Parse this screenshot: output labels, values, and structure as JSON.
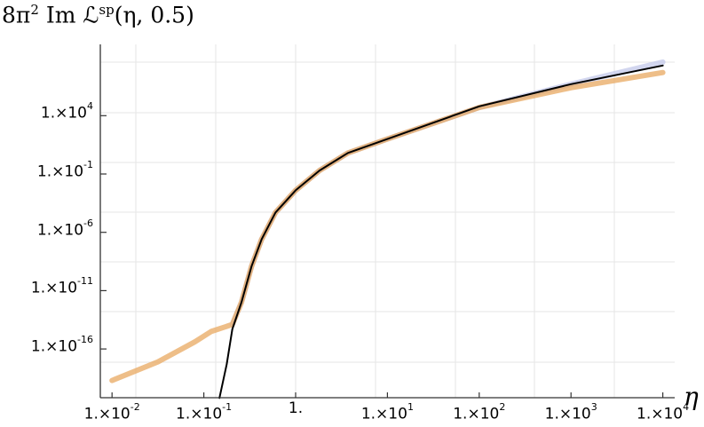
{
  "chart_data": {
    "type": "line",
    "title": "8π² Im ℒ^sp(η, 0.5)",
    "title_parts": {
      "prefix": "8π",
      "exp": "2",
      "middle": " Im ℒ",
      "sup": "sp",
      "suffix": "(η, 0.5)"
    },
    "xlabel": "η",
    "ylabel": "",
    "xscale": "log",
    "yscale": "log",
    "xlim_log10": [
      -2.1,
      4.05
    ],
    "ylim_log10": [
      -20.2,
      10.2
    ],
    "grid": true,
    "legend": false,
    "x_ticks": [
      {
        "mant": "1.×10",
        "exp": "-2",
        "log10": -2
      },
      {
        "mant": "1.×10",
        "exp": "-1",
        "log10": -1
      },
      {
        "mant": "1.",
        "exp": "",
        "log10": 0
      },
      {
        "mant": "1.×10",
        "exp": "1",
        "log10": 1
      },
      {
        "mant": "1.×10",
        "exp": "2",
        "log10": 2
      },
      {
        "mant": "1.×10",
        "exp": "3",
        "log10": 3
      },
      {
        "mant": "1.×10",
        "exp": "4",
        "log10": 4
      }
    ],
    "y_ticks": [
      {
        "mant": "1.×10",
        "exp": "4",
        "log10": 4
      },
      {
        "mant": "1.×10",
        "exp": "-1",
        "log10": -1
      },
      {
        "mant": "1.×10",
        "exp": "-6",
        "log10": -6
      },
      {
        "mant": "1.×10",
        "exp": "-11",
        "log10": -11
      },
      {
        "mant": "1.×10",
        "exp": "-16",
        "log10": -16
      }
    ],
    "series": [
      {
        "name": "blue (thick, faint)",
        "color": "#c3c8ea",
        "width": 6,
        "log10_x": [
          -0.69,
          -0.59,
          -0.48,
          -0.37,
          -0.22,
          0,
          0.26,
          0.57,
          1,
          2,
          3,
          4
        ],
        "log10_y": [
          -13.9,
          -12.0,
          -8.9,
          -6.6,
          -4.3,
          -2.4,
          -0.7,
          0.8,
          2.0,
          4.7,
          6.7,
          8.6
        ]
      },
      {
        "name": "orange (thick, translucent)",
        "color": "#e8a860",
        "width": 6,
        "log10_x": [
          -2,
          -1.5,
          -1.1,
          -0.92,
          -0.69,
          -0.59,
          -0.48,
          -0.37,
          -0.22,
          0,
          0.26,
          0.57,
          1,
          2,
          3,
          4
        ],
        "log10_y": [
          -18.7,
          -17.1,
          -15.4,
          -14.5,
          -13.9,
          -12.0,
          -8.9,
          -6.6,
          -4.3,
          -2.4,
          -0.7,
          0.8,
          2.0,
          4.7,
          6.4,
          7.7
        ]
      },
      {
        "name": "black (thin)",
        "color": "#000000",
        "width": 2,
        "log10_x": [
          -0.83,
          -0.75,
          -0.69,
          -0.59,
          -0.48,
          -0.37,
          -0.22,
          0,
          0.26,
          0.57,
          1,
          2,
          3,
          4
        ],
        "log10_y": [
          -20.2,
          -17.3,
          -14.3,
          -12.0,
          -8.9,
          -6.6,
          -4.3,
          -2.4,
          -0.7,
          0.8,
          2.0,
          4.8,
          6.7,
          8.3
        ]
      }
    ]
  }
}
